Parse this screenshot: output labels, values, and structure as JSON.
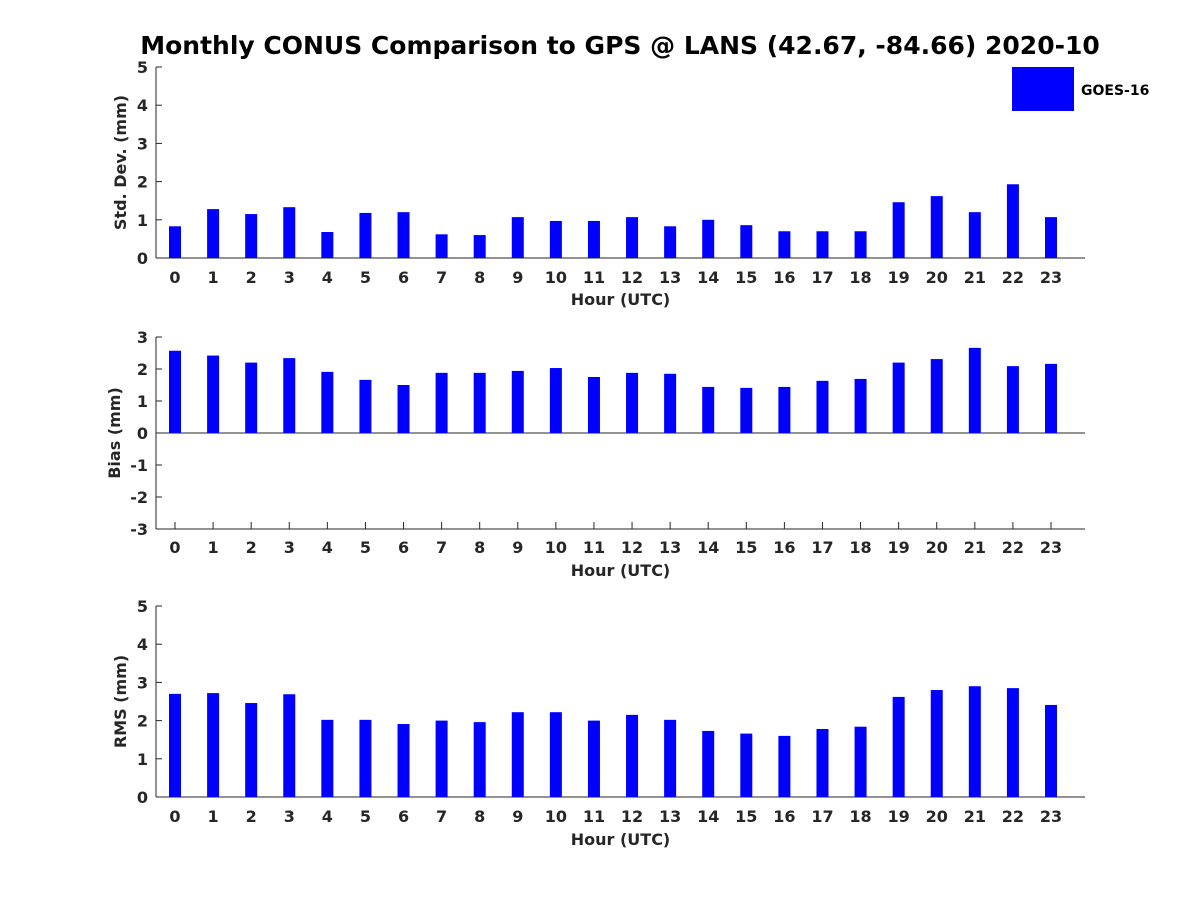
{
  "figure": {
    "title": "Monthly CONUS Comparison to GPS @ LANS (42.67, -84.66) 2020-10",
    "legend_label": "GOES-16",
    "bar_color": "#0000ff"
  },
  "chart_data": [
    {
      "type": "bar",
      "xlabel": "Hour (UTC)",
      "ylabel": "Std. Dev. (mm)",
      "ylim": [
        0,
        5
      ],
      "yticks": [
        0,
        1,
        2,
        3,
        4,
        5
      ],
      "categories": [
        "0",
        "1",
        "2",
        "3",
        "4",
        "5",
        "6",
        "7",
        "8",
        "9",
        "10",
        "11",
        "12",
        "13",
        "14",
        "15",
        "16",
        "17",
        "18",
        "19",
        "20",
        "21",
        "22",
        "23"
      ],
      "series": [
        {
          "name": "GOES-16",
          "values": [
            0.83,
            1.28,
            1.15,
            1.33,
            0.68,
            1.18,
            1.2,
            0.62,
            0.6,
            1.07,
            0.97,
            0.97,
            1.07,
            0.83,
            1.0,
            0.86,
            0.7,
            0.7,
            0.7,
            1.46,
            1.62,
            1.2,
            1.93,
            1.07
          ]
        }
      ],
      "legend": "top-right"
    },
    {
      "type": "bar",
      "xlabel": "Hour (UTC)",
      "ylabel": "Bias (mm)",
      "ylim": [
        -3,
        3
      ],
      "yticks": [
        -3,
        -2,
        -1,
        0,
        1,
        2,
        3
      ],
      "categories": [
        "0",
        "1",
        "2",
        "3",
        "4",
        "5",
        "6",
        "7",
        "8",
        "9",
        "10",
        "11",
        "12",
        "13",
        "14",
        "15",
        "16",
        "17",
        "18",
        "19",
        "20",
        "21",
        "22",
        "23"
      ],
      "series": [
        {
          "name": "GOES-16",
          "values": [
            2.57,
            2.42,
            2.2,
            2.34,
            1.91,
            1.66,
            1.5,
            1.88,
            1.88,
            1.94,
            2.03,
            1.75,
            1.88,
            1.85,
            1.44,
            1.41,
            1.44,
            1.63,
            1.69,
            2.2,
            2.31,
            2.66,
            2.09,
            2.16
          ]
        }
      ]
    },
    {
      "type": "bar",
      "xlabel": "Hour (UTC)",
      "ylabel": "RMS (mm)",
      "ylim": [
        0,
        5
      ],
      "yticks": [
        0,
        1,
        2,
        3,
        4,
        5
      ],
      "categories": [
        "0",
        "1",
        "2",
        "3",
        "4",
        "5",
        "6",
        "7",
        "8",
        "9",
        "10",
        "11",
        "12",
        "13",
        "14",
        "15",
        "16",
        "17",
        "18",
        "19",
        "20",
        "21",
        "22",
        "23"
      ],
      "series": [
        {
          "name": "GOES-16",
          "values": [
            2.7,
            2.72,
            2.46,
            2.69,
            2.02,
            2.02,
            1.91,
            2.0,
            1.96,
            2.22,
            2.22,
            2.0,
            2.15,
            2.02,
            1.73,
            1.66,
            1.6,
            1.78,
            1.84,
            2.62,
            2.8,
            2.9,
            2.85,
            2.41
          ]
        }
      ]
    }
  ]
}
